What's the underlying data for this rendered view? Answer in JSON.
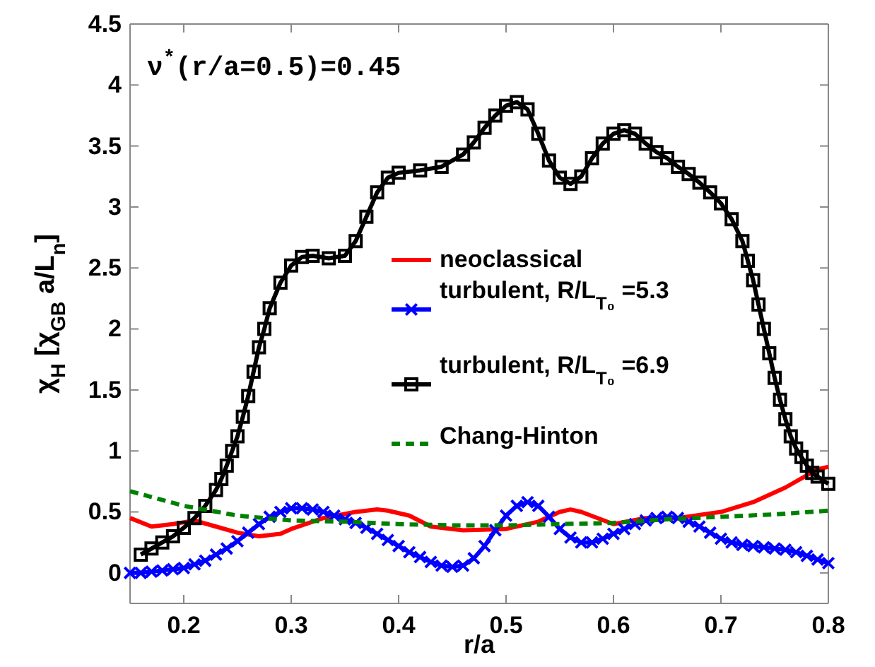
{
  "chart_data": {
    "type": "line",
    "xlabel": "r/a",
    "ylabel": "χ$_{H}$ [χ$_{GB}$ a/L$_{n}$]",
    "annotations": [
      "ν$^{*}$(r/a=0.5)=0.45"
    ],
    "xlim": [
      0.15,
      0.8
    ],
    "ylim": [
      -0.25,
      4.5
    ],
    "xticks": [
      0.2,
      0.3,
      0.4,
      0.5,
      0.6,
      0.7,
      0.8
    ],
    "yticks": [
      0,
      0.5,
      1,
      1.5,
      2,
      2.5,
      3,
      3.5,
      4,
      4.5
    ],
    "grid": false,
    "legend": "center",
    "series": [
      {
        "name": "neoclassical",
        "color": "#ff0000",
        "marker": "none",
        "line_style": "solid",
        "x": [
          0.15,
          0.17,
          0.19,
          0.21,
          0.23,
          0.25,
          0.27,
          0.29,
          0.3,
          0.33,
          0.36,
          0.38,
          0.39,
          0.41,
          0.43,
          0.46,
          0.5,
          0.53,
          0.55,
          0.56,
          0.57,
          0.6,
          0.63,
          0.66,
          0.7,
          0.73,
          0.76,
          0.79,
          0.8
        ],
        "values": [
          0.45,
          0.38,
          0.4,
          0.43,
          0.38,
          0.33,
          0.3,
          0.32,
          0.36,
          0.45,
          0.5,
          0.52,
          0.51,
          0.47,
          0.38,
          0.35,
          0.36,
          0.42,
          0.5,
          0.52,
          0.5,
          0.4,
          0.45,
          0.45,
          0.5,
          0.58,
          0.7,
          0.85,
          0.87
        ]
      },
      {
        "name": "turbulent, R/L$_{T₀}$ =5.3",
        "color": "#0000ff",
        "marker": "cross",
        "line_style": "solid",
        "x": [
          0.15,
          0.16,
          0.17,
          0.18,
          0.19,
          0.2,
          0.21,
          0.22,
          0.23,
          0.24,
          0.25,
          0.26,
          0.27,
          0.28,
          0.29,
          0.3,
          0.31,
          0.32,
          0.33,
          0.34,
          0.35,
          0.36,
          0.37,
          0.38,
          0.39,
          0.4,
          0.41,
          0.42,
          0.43,
          0.44,
          0.45,
          0.46,
          0.47,
          0.48,
          0.49,
          0.5,
          0.51,
          0.52,
          0.53,
          0.54,
          0.55,
          0.56,
          0.57,
          0.58,
          0.59,
          0.6,
          0.61,
          0.62,
          0.63,
          0.64,
          0.65,
          0.66,
          0.67,
          0.68,
          0.69,
          0.7,
          0.71,
          0.72,
          0.73,
          0.74,
          0.75,
          0.76,
          0.77,
          0.78,
          0.79,
          0.8
        ],
        "values": [
          0,
          0,
          0.01,
          0.02,
          0.03,
          0.04,
          0.07,
          0.1,
          0.15,
          0.2,
          0.26,
          0.33,
          0.4,
          0.46,
          0.5,
          0.53,
          0.53,
          0.52,
          0.5,
          0.47,
          0.44,
          0.41,
          0.37,
          0.32,
          0.27,
          0.22,
          0.17,
          0.13,
          0.09,
          0.06,
          0.05,
          0.06,
          0.12,
          0.22,
          0.35,
          0.47,
          0.55,
          0.58,
          0.55,
          0.46,
          0.36,
          0.29,
          0.25,
          0.25,
          0.28,
          0.32,
          0.36,
          0.4,
          0.43,
          0.45,
          0.46,
          0.45,
          0.42,
          0.38,
          0.33,
          0.28,
          0.25,
          0.23,
          0.22,
          0.21,
          0.2,
          0.19,
          0.17,
          0.14,
          0.11,
          0.08
        ]
      },
      {
        "name": "turbulent, R/L$_{T₀}$ =6.9",
        "color": "#000000",
        "marker": "square",
        "line_style": "solid",
        "x": [
          0.16,
          0.17,
          0.18,
          0.19,
          0.2,
          0.21,
          0.22,
          0.23,
          0.235,
          0.24,
          0.245,
          0.25,
          0.255,
          0.26,
          0.265,
          0.27,
          0.275,
          0.28,
          0.29,
          0.3,
          0.31,
          0.32,
          0.335,
          0.35,
          0.36,
          0.37,
          0.38,
          0.39,
          0.4,
          0.42,
          0.44,
          0.46,
          0.47,
          0.48,
          0.49,
          0.5,
          0.51,
          0.52,
          0.53,
          0.54,
          0.55,
          0.56,
          0.57,
          0.58,
          0.59,
          0.6,
          0.61,
          0.62,
          0.63,
          0.64,
          0.65,
          0.66,
          0.67,
          0.68,
          0.69,
          0.7,
          0.71,
          0.72,
          0.725,
          0.73,
          0.735,
          0.74,
          0.745,
          0.75,
          0.755,
          0.76,
          0.765,
          0.77,
          0.775,
          0.78,
          0.785,
          0.79,
          0.8
        ],
        "values": [
          0.15,
          0.2,
          0.25,
          0.3,
          0.37,
          0.45,
          0.55,
          0.68,
          0.77,
          0.88,
          1,
          1.12,
          1.28,
          1.45,
          1.65,
          1.85,
          2.0,
          2.17,
          2.38,
          2.52,
          2.59,
          2.6,
          2.58,
          2.6,
          2.72,
          2.92,
          3.12,
          3.24,
          3.28,
          3.3,
          3.33,
          3.43,
          3.53,
          3.65,
          3.75,
          3.83,
          3.86,
          3.8,
          3.6,
          3.38,
          3.24,
          3.19,
          3.25,
          3.4,
          3.52,
          3.6,
          3.63,
          3.6,
          3.52,
          3.45,
          3.4,
          3.33,
          3.27,
          3.2,
          3.12,
          3.03,
          2.9,
          2.72,
          2.56,
          2.4,
          2.2,
          2.0,
          1.8,
          1.6,
          1.42,
          1.26,
          1.12,
          1.02,
          0.95,
          0.88,
          0.82,
          0.79,
          0.73
        ]
      },
      {
        "name": "Chang-Hinton",
        "color": "#008000",
        "marker": "none",
        "line_style": "dashed",
        "x": [
          0.15,
          0.2,
          0.25,
          0.3,
          0.35,
          0.4,
          0.45,
          0.5,
          0.55,
          0.6,
          0.65,
          0.7,
          0.75,
          0.8
        ],
        "values": [
          0.67,
          0.55,
          0.47,
          0.43,
          0.42,
          0.4,
          0.39,
          0.39,
          0.4,
          0.41,
          0.44,
          0.46,
          0.48,
          0.51
        ]
      }
    ]
  }
}
